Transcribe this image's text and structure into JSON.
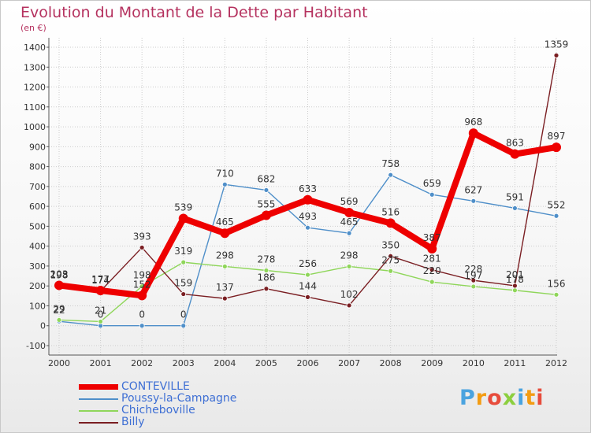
{
  "page": {
    "title": "Evolution du Montant de la Dette par Habitant",
    "subtitle": "(en €)",
    "brand": "Proxiti"
  },
  "chart_data": {
    "type": "line",
    "title": "Evolution du Montant de la Dette par Habitant",
    "subtitle": "(en €)",
    "xlabel": "",
    "ylabel": "",
    "categories": [
      "2000",
      "2001",
      "2002",
      "2003",
      "2004",
      "2005",
      "2006",
      "2007",
      "2008",
      "2009",
      "2010",
      "2011",
      "2012"
    ],
    "y_ticks": [
      -100,
      0,
      100,
      200,
      300,
      400,
      500,
      600,
      700,
      800,
      900,
      1000,
      1100,
      1200,
      1300,
      1400
    ],
    "ylim": [
      -100,
      1400
    ],
    "grid": true,
    "legend_position": "bottom-left",
    "series": [
      {
        "name": "CONTEVILLE",
        "color": "#ee0000",
        "values": [
          203,
          177,
          152,
          539,
          465,
          555,
          633,
          569,
          516,
          387,
          968,
          863,
          897
        ]
      },
      {
        "name": "Poussy-la-Campagne",
        "color": "#4f8fc9",
        "values": [
          22,
          0,
          0,
          0,
          710,
          682,
          493,
          465,
          758,
          659,
          627,
          591,
          552
        ]
      },
      {
        "name": "Chicheboville",
        "color": "#8fd65a",
        "values": [
          29,
          21,
          198,
          319,
          298,
          278,
          256,
          298,
          275,
          220,
          197,
          178,
          156
        ]
      },
      {
        "name": "Billy",
        "color": "#7a1e22",
        "values": [
          198,
          174,
          393,
          159,
          137,
          186,
          144,
          102,
          350,
          281,
          228,
          201,
          1359
        ]
      }
    ],
    "labels": [
      {
        "series": 0,
        "texts": [
          "203",
          "177",
          "152",
          "539",
          "465",
          "555",
          "633",
          "569",
          "516",
          "387",
          "968",
          "863",
          "897"
        ]
      },
      {
        "series": 1,
        "texts": [
          "22",
          "0",
          "0",
          "0",
          "710",
          "682",
          "493",
          "465",
          "758",
          "659",
          "627",
          "591",
          "552"
        ]
      },
      {
        "series": 2,
        "texts": [
          "29",
          "21",
          "198",
          "319",
          "298",
          "278",
          "256",
          "298",
          "275",
          "220",
          "197",
          "178",
          "156"
        ]
      },
      {
        "series": 3,
        "texts": [
          "198",
          "174",
          "393",
          "159",
          "137",
          "186",
          "144",
          "102",
          "350",
          "281",
          "228",
          "201",
          "1359"
        ]
      }
    ]
  }
}
